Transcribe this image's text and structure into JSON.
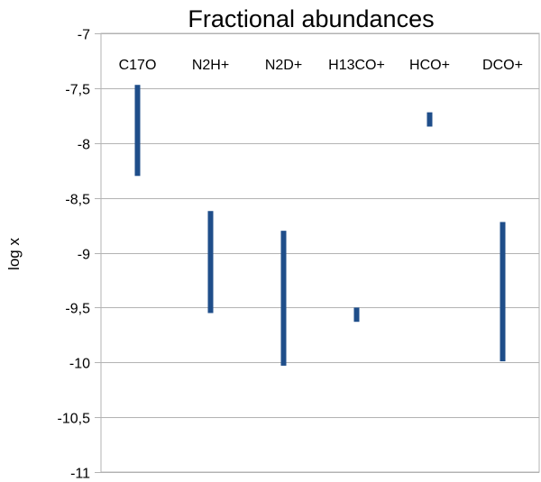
{
  "chart_data": {
    "type": "bar",
    "subtype": "floating-range",
    "title": "Fractional abundances",
    "xlabel": "",
    "ylabel": "log x",
    "ylim": [
      -11,
      -7
    ],
    "yticks": [
      -7,
      -7.5,
      -8,
      -8.5,
      -9,
      -9.5,
      -10,
      -10.5,
      -11
    ],
    "ytick_labels": [
      "-7",
      "-7,5",
      "-8",
      "-8,5",
      "-9",
      "-9,5",
      "-10",
      "-10,5",
      "-11"
    ],
    "grid": true,
    "legend": "none",
    "categories": [
      "C17O",
      "N2H+",
      "N2D+",
      "H13CO+",
      "HCO+",
      "DCO+"
    ],
    "ranges": [
      {
        "low": -8.3,
        "high": -7.47
      },
      {
        "low": -9.55,
        "high": -8.62
      },
      {
        "low": -10.03,
        "high": -8.8
      },
      {
        "low": -9.63,
        "high": -9.5
      },
      {
        "low": -7.85,
        "high": -7.72
      },
      {
        "low": -9.99,
        "high": -8.72
      }
    ],
    "colors": {
      "bar": "#1f4e8a",
      "grid": "#b3b3b3",
      "frame": "#b3b3b3"
    }
  }
}
